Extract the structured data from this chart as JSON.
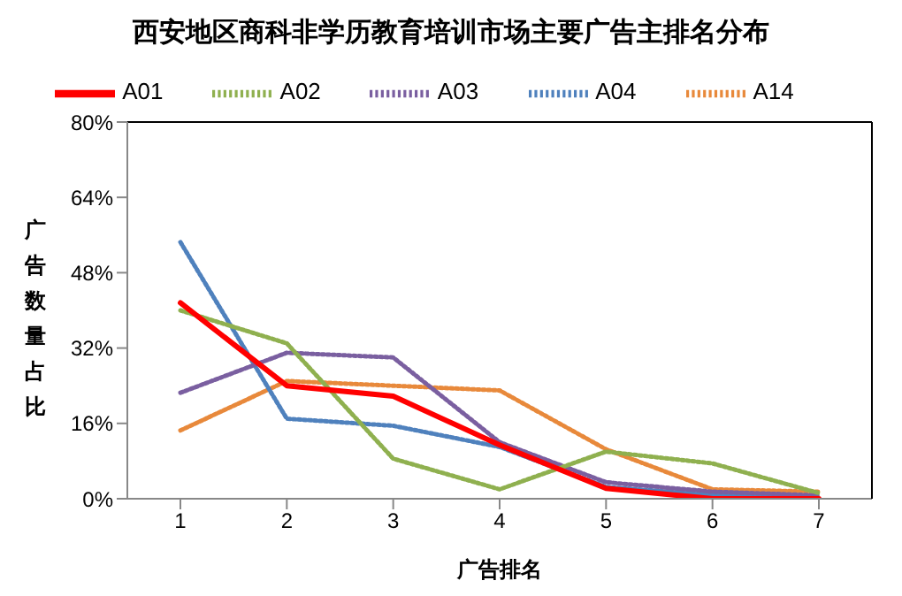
{
  "chart_data": {
    "type": "line",
    "title": "西安地区商科非学历教育培训市场主要广告主排名分布",
    "xlabel": "广告排名",
    "ylabel": "广告数量占比",
    "categories": [
      "1",
      "2",
      "3",
      "4",
      "5",
      "6",
      "7"
    ],
    "series": [
      {
        "name": "A01",
        "color": "#ff0000",
        "line_style": "solid",
        "values": [
          41.6,
          24,
          21.8,
          11.4,
          2.2,
          0,
          0
        ]
      },
      {
        "name": "A02",
        "color": "#8fb04f",
        "line_style": "dotted",
        "values": [
          40,
          33,
          8.5,
          2,
          10,
          7.5,
          1.2
        ]
      },
      {
        "name": "A03",
        "color": "#7a5fa0",
        "line_style": "dotted",
        "values": [
          22.5,
          31,
          30,
          12,
          3.5,
          1.5,
          0.7
        ]
      },
      {
        "name": "A04",
        "color": "#4f81bd",
        "line_style": "dotted",
        "values": [
          54.5,
          17,
          15.5,
          11,
          2.5,
          0.8,
          0
        ]
      },
      {
        "name": "A14",
        "color": "#e8893b",
        "line_style": "dotted",
        "values": [
          14.5,
          25,
          24,
          23,
          10.5,
          2,
          1.5
        ]
      }
    ],
    "ylim": [
      0,
      80
    ],
    "yticks": [
      {
        "value": 0,
        "label": "0%"
      },
      {
        "value": 16,
        "label": "16%"
      },
      {
        "value": 32,
        "label": "32%"
      },
      {
        "value": 48,
        "label": "48%"
      },
      {
        "value": 64,
        "label": "64%"
      },
      {
        "value": 80,
        "label": "80%"
      }
    ],
    "grid": false,
    "legend": "top",
    "marker": "none"
  }
}
